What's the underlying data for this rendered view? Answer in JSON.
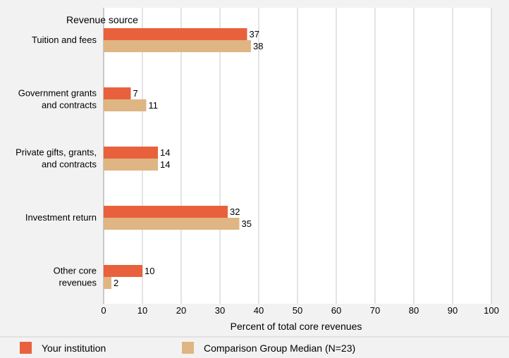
{
  "colors": {
    "panel_bg": "#f2f2f2",
    "plot_bg": "#ffffff",
    "grid": "#c8c8c8",
    "series_1": "#e8613c",
    "series_2": "#dfb583"
  },
  "chart_data": {
    "type": "bar",
    "orientation": "horizontal",
    "y_title": "Revenue source",
    "xlabel": "Percent of total core revenues",
    "xlim": [
      0,
      100
    ],
    "xticks": [
      0,
      10,
      20,
      30,
      40,
      50,
      60,
      70,
      80,
      90,
      100
    ],
    "grid": true,
    "legend_position": "bottom",
    "categories": [
      [
        "Tuition and fees"
      ],
      [
        "Government grants",
        "and contracts"
      ],
      [
        "Private gifts, grants,",
        "and contracts"
      ],
      [
        "Investment return"
      ],
      [
        "Other core",
        "revenues"
      ]
    ],
    "series": [
      {
        "name": "Your institution",
        "color": "#e8613c",
        "values": [
          37,
          7,
          14,
          32,
          10
        ]
      },
      {
        "name": "Comparison Group Median (N=23)",
        "color": "#dfb583",
        "values": [
          38,
          11,
          14,
          35,
          2
        ]
      }
    ]
  }
}
